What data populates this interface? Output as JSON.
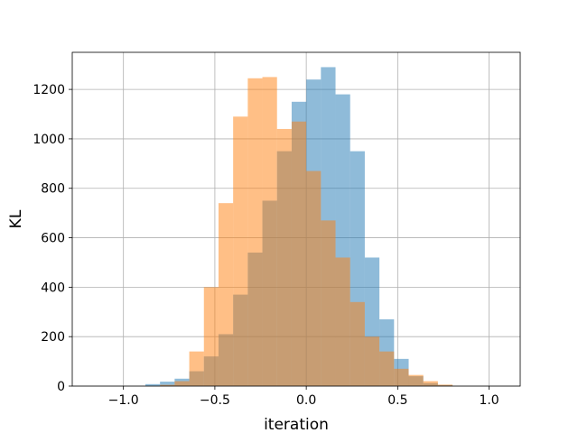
{
  "chart_data": {
    "type": "bar",
    "xlabel": "iteration",
    "ylabel": "KL",
    "xlim": [
      -1.28,
      1.17
    ],
    "ylim": [
      0,
      1350
    ],
    "grid": true,
    "xticks": [
      {
        "value": -1.0,
        "label": "−1.0"
      },
      {
        "value": -0.5,
        "label": "−0.5"
      },
      {
        "value": 0.0,
        "label": "0.0"
      },
      {
        "value": 0.5,
        "label": "0.5"
      },
      {
        "value": 1.0,
        "label": "1.0"
      }
    ],
    "yticks": [
      {
        "value": 0,
        "label": "0"
      },
      {
        "value": 200,
        "label": "200"
      },
      {
        "value": 400,
        "label": "400"
      },
      {
        "value": 600,
        "label": "600"
      },
      {
        "value": 800,
        "label": "800"
      },
      {
        "value": 1000,
        "label": "1000"
      },
      {
        "value": 1200,
        "label": "1200"
      }
    ],
    "series": [
      {
        "color": "#1f77b4",
        "opacity": 0.5,
        "bins": [
          {
            "x0": -0.88,
            "x1": -0.8,
            "count": 8
          },
          {
            "x0": -0.8,
            "x1": -0.72,
            "count": 18
          },
          {
            "x0": -0.72,
            "x1": -0.64,
            "count": 30
          },
          {
            "x0": -0.64,
            "x1": -0.56,
            "count": 60
          },
          {
            "x0": -0.56,
            "x1": -0.48,
            "count": 120
          },
          {
            "x0": -0.48,
            "x1": -0.4,
            "count": 210
          },
          {
            "x0": -0.4,
            "x1": -0.32,
            "count": 370
          },
          {
            "x0": -0.32,
            "x1": -0.24,
            "count": 540
          },
          {
            "x0": -0.24,
            "x1": -0.16,
            "count": 750
          },
          {
            "x0": -0.16,
            "x1": -0.08,
            "count": 950
          },
          {
            "x0": -0.08,
            "x1": 0.0,
            "count": 1150
          },
          {
            "x0": 0.0,
            "x1": 0.08,
            "count": 1240
          },
          {
            "x0": 0.08,
            "x1": 0.16,
            "count": 1290
          },
          {
            "x0": 0.16,
            "x1": 0.24,
            "count": 1180
          },
          {
            "x0": 0.24,
            "x1": 0.32,
            "count": 950
          },
          {
            "x0": 0.32,
            "x1": 0.4,
            "count": 520
          },
          {
            "x0": 0.4,
            "x1": 0.48,
            "count": 270
          },
          {
            "x0": 0.48,
            "x1": 0.56,
            "count": 110
          },
          {
            "x0": 0.56,
            "x1": 0.64,
            "count": 40
          },
          {
            "x0": 0.64,
            "x1": 0.72,
            "count": 12
          },
          {
            "x0": 0.72,
            "x1": 0.8,
            "count": 4
          }
        ]
      },
      {
        "color": "#ff7f0e",
        "opacity": 0.5,
        "bins": [
          {
            "x0": -0.8,
            "x1": -0.72,
            "count": 5
          },
          {
            "x0": -0.72,
            "x1": -0.64,
            "count": 20
          },
          {
            "x0": -0.64,
            "x1": -0.56,
            "count": 140
          },
          {
            "x0": -0.56,
            "x1": -0.48,
            "count": 400
          },
          {
            "x0": -0.48,
            "x1": -0.4,
            "count": 740
          },
          {
            "x0": -0.4,
            "x1": -0.32,
            "count": 1090
          },
          {
            "x0": -0.32,
            "x1": -0.24,
            "count": 1245
          },
          {
            "x0": -0.24,
            "x1": -0.16,
            "count": 1250
          },
          {
            "x0": -0.16,
            "x1": -0.08,
            "count": 1040
          },
          {
            "x0": -0.08,
            "x1": 0.0,
            "count": 1070
          },
          {
            "x0": 0.0,
            "x1": 0.08,
            "count": 870
          },
          {
            "x0": 0.08,
            "x1": 0.16,
            "count": 670
          },
          {
            "x0": 0.16,
            "x1": 0.24,
            "count": 520
          },
          {
            "x0": 0.24,
            "x1": 0.32,
            "count": 340
          },
          {
            "x0": 0.32,
            "x1": 0.4,
            "count": 200
          },
          {
            "x0": 0.4,
            "x1": 0.48,
            "count": 140
          },
          {
            "x0": 0.48,
            "x1": 0.56,
            "count": 70
          },
          {
            "x0": 0.56,
            "x1": 0.64,
            "count": 45
          },
          {
            "x0": 0.64,
            "x1": 0.72,
            "count": 20
          },
          {
            "x0": 0.72,
            "x1": 0.8,
            "count": 6
          }
        ]
      }
    ]
  }
}
